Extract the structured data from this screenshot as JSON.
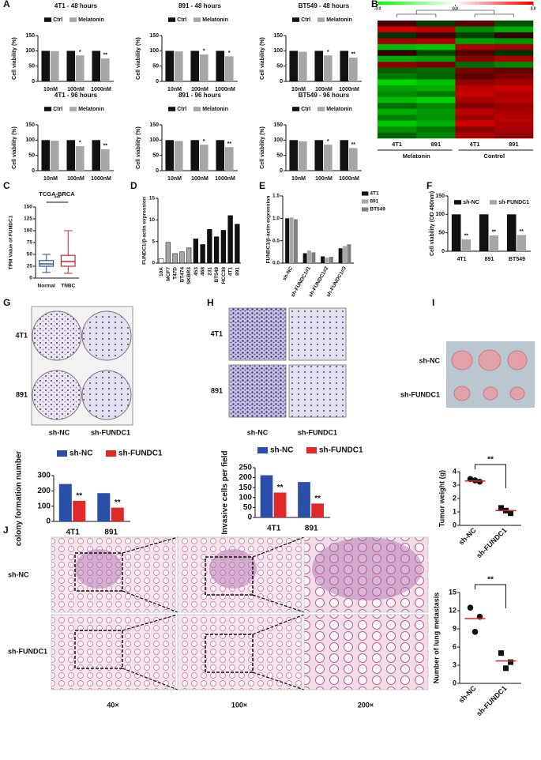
{
  "panel_letters": [
    "A",
    "B",
    "C",
    "D",
    "E",
    "F",
    "G",
    "H",
    "I",
    "J"
  ],
  "chart_data": [
    {
      "type": "bar",
      "title": "4T1 - 48 hours",
      "ylabel": "Cell viability (%)",
      "categories": [
        "10nM",
        "100nM",
        "1000nM"
      ],
      "series": [
        {
          "name": "Ctrl",
          "color": "#111111",
          "values": [
            100,
            100,
            100
          ]
        },
        {
          "name": "Melatonin",
          "color": "#a6a6a6",
          "values": [
            99,
            85,
            75
          ],
          "annotations": [
            null,
            "*",
            "**"
          ]
        }
      ],
      "ylim": [
        0,
        150
      ],
      "yticks": [
        0,
        50,
        100,
        150
      ]
    },
    {
      "type": "bar",
      "title": "891 - 48 hours",
      "ylabel": "Cell viability (%)",
      "categories": [
        "10nM",
        "100nM",
        "1000nM"
      ],
      "series": [
        {
          "name": "Ctrl",
          "color": "#111111",
          "values": [
            100,
            100,
            100
          ]
        },
        {
          "name": "Melatonin",
          "color": "#a6a6a6",
          "values": [
            98,
            88,
            82
          ],
          "annotations": [
            null,
            "*",
            "*"
          ]
        }
      ],
      "ylim": [
        0,
        150
      ],
      "yticks": [
        0,
        50,
        100,
        150
      ]
    },
    {
      "type": "bar",
      "title": "BT549 - 48 hours",
      "ylabel": "Cell viability (%)",
      "categories": [
        "10nM",
        "100nM",
        "1000nM"
      ],
      "series": [
        {
          "name": "Ctrl",
          "color": "#111111",
          "values": [
            100,
            100,
            100
          ]
        },
        {
          "name": "Melatonin",
          "color": "#a6a6a6",
          "values": [
            97,
            85,
            78
          ],
          "annotations": [
            null,
            "*",
            "**"
          ]
        }
      ],
      "ylim": [
        0,
        150
      ],
      "yticks": [
        0,
        50,
        100,
        150
      ]
    },
    {
      "type": "bar",
      "title": "4T1 - 96 hours",
      "ylabel": "Cell viability (%)",
      "categories": [
        "10nM",
        "100nM",
        "1000nM"
      ],
      "series": [
        {
          "name": "Ctrl",
          "color": "#111111",
          "values": [
            100,
            100,
            100
          ]
        },
        {
          "name": "Melatonin",
          "color": "#a6a6a6",
          "values": [
            98,
            80,
            70
          ],
          "annotations": [
            null,
            "*",
            "**"
          ]
        }
      ],
      "ylim": [
        0,
        150
      ],
      "yticks": [
        0,
        50,
        100,
        150
      ]
    },
    {
      "type": "bar",
      "title": "891 - 96 hours",
      "ylabel": "Cell viability (%)",
      "categories": [
        "10nM",
        "100nM",
        "1000nM"
      ],
      "series": [
        {
          "name": "Ctrl",
          "color": "#111111",
          "values": [
            100,
            100,
            100
          ]
        },
        {
          "name": "Melatonin",
          "color": "#a6a6a6",
          "values": [
            97,
            85,
            77
          ],
          "annotations": [
            null,
            "*",
            "**"
          ]
        }
      ],
      "ylim": [
        0,
        150
      ],
      "yticks": [
        0,
        50,
        100,
        150
      ]
    },
    {
      "type": "bar",
      "title": "BT549 - 96 hours",
      "ylabel": "Cell viability (%)",
      "categories": [
        "10nM",
        "100nM",
        "1000nM"
      ],
      "series": [
        {
          "name": "Ctrl",
          "color": "#111111",
          "values": [
            100,
            100,
            100
          ]
        },
        {
          "name": "Melatonin",
          "color": "#a6a6a6",
          "values": [
            96,
            85,
            74
          ],
          "annotations": [
            null,
            "*",
            "**"
          ]
        }
      ],
      "ylim": [
        0,
        150
      ],
      "yticks": [
        0,
        50,
        100,
        150
      ]
    },
    {
      "type": "heatmap",
      "categories": [
        "4T1",
        "891",
        "4T1",
        "891"
      ],
      "groups": [
        "Melatonin",
        "Control"
      ],
      "clim": [
        -3,
        3
      ],
      "cticks": [
        {
          "value": -3,
          "label": "-3.0"
        },
        {
          "value": 0,
          "label": "0.0"
        },
        {
          "value": 3,
          "label": "3.0"
        }
      ],
      "values": [
        [
          0.5,
          -0.3,
          0.8,
          -0.6
        ],
        [
          2.5,
          2.2,
          -1.5,
          -2
        ],
        [
          -0.2,
          0.3,
          -0.4,
          0.2
        ],
        [
          1.8,
          2,
          -1.8,
          -1.6
        ],
        [
          -2.2,
          -2.4,
          2,
          1.8
        ],
        [
          0.3,
          -0.5,
          0.6,
          -0.2
        ],
        [
          -2,
          -1.8,
          1.5,
          2
        ],
        [
          1.5,
          1.2,
          -1,
          -1.4
        ],
        [
          -0.8,
          -1,
          1.2,
          0.9
        ],
        [
          -1.2,
          -0.9,
          0.8,
          1.3
        ],
        [
          -2.6,
          -2.3,
          1.6,
          1.8
        ],
        [
          -1.8,
          -2,
          2.2,
          2.4
        ],
        [
          -1.5,
          -1.2,
          2.4,
          2
        ],
        [
          -2.2,
          -2.5,
          1.9,
          2.2
        ],
        [
          -1,
          -1.4,
          1.4,
          1.7
        ],
        [
          -2,
          -1.7,
          2.2,
          1.9
        ],
        [
          -1.3,
          -1.6,
          1.8,
          2.2
        ],
        [
          -2.4,
          -2,
          2.5,
          2
        ],
        [
          -1.6,
          -1.2,
          1.5,
          1.9
        ],
        [
          -0.9,
          -1.4,
          2,
          1.6
        ]
      ]
    },
    {
      "type": "box",
      "title": "TCGA-BRCA",
      "ylabel": "TPM Value of FUNDC1",
      "categories": [
        "Normal",
        "TNBC"
      ],
      "colors": [
        "#2b4fa3",
        "#c0282e"
      ],
      "stats": [
        {
          "min": 12,
          "q1": 25,
          "median": 30,
          "q3": 37,
          "max": 50
        },
        {
          "min": 10,
          "q1": 25,
          "median": 35,
          "q3": 48,
          "max": 100
        }
      ],
      "annotation": "***",
      "ylim": [
        0,
        150
      ],
      "yticks": [
        0,
        25,
        50,
        75,
        100,
        125,
        150
      ]
    },
    {
      "type": "bar",
      "ylabel": "FUNDC1/β-actin expression",
      "categories": [
        "10A",
        "MCF7",
        "T47D",
        "BT474",
        "SKBR3",
        "453",
        "468",
        "231",
        "BT549",
        "HCC38",
        "4T1",
        "891"
      ],
      "values": [
        1,
        4.8,
        2.2,
        2.6,
        3.5,
        5.6,
        4.3,
        7.8,
        6.1,
        7.6,
        11,
        9
      ],
      "colors": [
        "#ffffff",
        "#a6a6a6",
        "#a6a6a6",
        "#a6a6a6",
        "#a6a6a6",
        "#111111",
        "#111111",
        "#111111",
        "#111111",
        "#111111",
        "#111111",
        "#111111"
      ],
      "edgecolor": "#000000",
      "ylim": [
        0,
        15
      ],
      "yticks": [
        0,
        5,
        10,
        15
      ]
    },
    {
      "type": "bar",
      "ylabel": "FUNDC1/β-actin expression",
      "categories": [
        "sh-NC",
        "sh-FUNDC1#1",
        "sh-FUNDC1#2",
        "sh-FUNDC1#3"
      ],
      "series": [
        {
          "name": "4T1",
          "color": "#111111",
          "values": [
            1,
            0.22,
            0.15,
            0.33
          ]
        },
        {
          "name": "891",
          "color": "#a6a6a6",
          "values": [
            1.02,
            0.28,
            0.12,
            0.38
          ]
        },
        {
          "name": "BT549",
          "color": "#7f7f7f",
          "values": [
            0.98,
            0.24,
            0.14,
            0.42
          ]
        }
      ],
      "ylim": [
        0,
        1.5
      ],
      "yticks": [
        {
          "value": 0,
          "label": "0.0"
        },
        0.5,
        {
          "value": 1,
          "label": "1.0"
        },
        1.5
      ]
    },
    {
      "type": "bar",
      "ylabel": "Cell viability (OD 450nm)",
      "categories": [
        "4T1",
        "891",
        "BT549"
      ],
      "series": [
        {
          "name": "sh-NC",
          "color": "#111111",
          "values": [
            100,
            100,
            100
          ]
        },
        {
          "name": "sh-FUNDC1",
          "color": "#a6a6a6",
          "values": [
            32,
            43,
            44
          ],
          "annotations": [
            "**",
            "**",
            "**"
          ]
        }
      ],
      "ylim": [
        0,
        150
      ],
      "yticks": [
        0,
        50,
        100,
        150
      ]
    },
    {
      "type": "bar",
      "ylabel": "colony formation number",
      "categories": [
        "4T1",
        "891"
      ],
      "series": [
        {
          "name": "sh-NC",
          "color": "#2a4fa8",
          "values": [
            245,
            185
          ]
        },
        {
          "name": "sh-FUNDC1",
          "color": "#e02a2a",
          "values": [
            135,
            90
          ],
          "annotations": [
            "**",
            "**"
          ]
        }
      ],
      "ylim": [
        0,
        300
      ],
      "yticks": [
        0,
        100,
        200,
        300
      ]
    },
    {
      "type": "bar",
      "ylabel": "Invasive cells per field",
      "categories": [
        "4T1",
        "891"
      ],
      "series": [
        {
          "name": "sh-NC",
          "color": "#2a4fa8",
          "values": [
            212,
            178
          ]
        },
        {
          "name": "sh-FUNDC1",
          "color": "#e02a2a",
          "values": [
            125,
            70
          ],
          "annotations": [
            "**",
            "**"
          ]
        }
      ],
      "ylim": [
        0,
        250
      ],
      "yticks": [
        0,
        50,
        100,
        150,
        200,
        250
      ]
    },
    {
      "type": "scatter",
      "ylabel": "Tumor weight (g)",
      "categories": [
        "sh-NC",
        "sh-FUNDC1"
      ],
      "markers": [
        "circle",
        "square"
      ],
      "marker_color": "#111111",
      "mean_color": "#d9262c",
      "points": [
        [
          3.45,
          3.25,
          3.35
        ],
        [
          1.3,
          0.9,
          1.1
        ]
      ],
      "means": [
        3.3,
        1.1
      ],
      "annotation": "**",
      "ylim": [
        0,
        4
      ],
      "yticks": [
        0,
        1,
        2,
        3,
        4
      ]
    },
    {
      "type": "scatter",
      "ylabel": "Number of lung metastasis",
      "categories": [
        "sh-NC",
        "sh-FUNDC1"
      ],
      "markers": [
        "circle",
        "square"
      ],
      "marker_color": "#111111",
      "mean_color": "#d9262c",
      "points": [
        [
          12.5,
          11,
          8.5
        ],
        [
          5,
          3.5,
          2.5
        ]
      ],
      "means": [
        10.7,
        3.7
      ],
      "annotation": "**",
      "ylim": [
        0,
        15
      ],
      "yticks": [
        0,
        3,
        6,
        9,
        12,
        15
      ]
    }
  ],
  "images": {
    "G": {
      "rows": [
        "4T1",
        "891"
      ],
      "cols": [
        "sh-NC",
        "sh-FUNDC1"
      ]
    },
    "H": {
      "rows": [
        "4T1",
        "891"
      ],
      "cols": [
        "sh-NC",
        "sh-FUNDC1"
      ]
    },
    "I": {
      "rows": [
        "sh-NC",
        "sh-FUNDC1"
      ]
    },
    "J": {
      "rows": [
        "sh-NC",
        "sh-FUNDC1"
      ],
      "cols": [
        "40×",
        "100×",
        "200×"
      ]
    }
  }
}
